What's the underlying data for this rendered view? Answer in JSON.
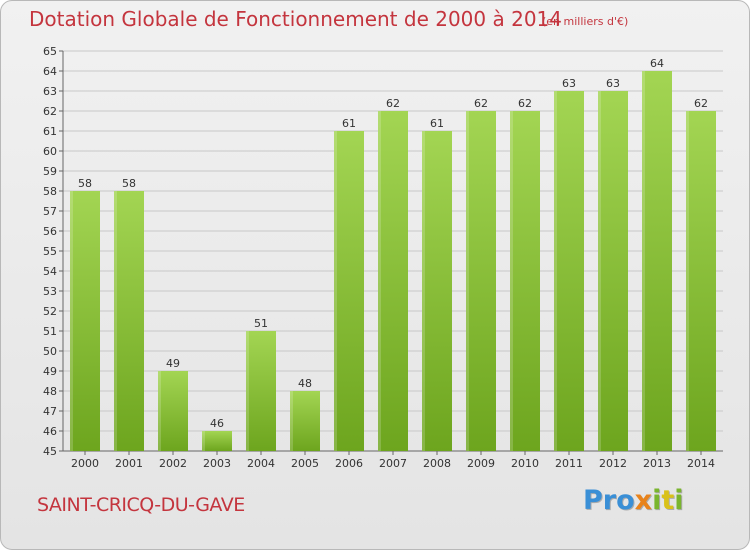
{
  "header": {
    "title": "Dotation Globale de Fonctionnement de 2000 à 2014",
    "subtitle": "(en milliers d'€)"
  },
  "footer": {
    "commune": "SAINT-CRICQ-DU-GAVE",
    "logo": [
      "Pro",
      "x",
      "i",
      "t",
      "i"
    ]
  },
  "colors": {
    "title": "#c4353e",
    "bar_light": "#a3d553",
    "bar_dark": "#6da51e",
    "grid": "#c8c8c8"
  },
  "chart_data": {
    "type": "bar",
    "title": "Dotation Globale de Fonctionnement de 2000 à 2014",
    "subtitle": "(en milliers d'€)",
    "xlabel": "",
    "ylabel": "",
    "categories": [
      "2000",
      "2001",
      "2002",
      "2003",
      "2004",
      "2005",
      "2006",
      "2007",
      "2008",
      "2009",
      "2010",
      "2011",
      "2012",
      "2013",
      "2014"
    ],
    "values": [
      58,
      58,
      49,
      46,
      51,
      48,
      61,
      62,
      61,
      62,
      62,
      63,
      63,
      64,
      62
    ],
    "ylim": [
      45,
      65
    ],
    "ytick_step": 1,
    "grid": true,
    "data_labels": true
  }
}
